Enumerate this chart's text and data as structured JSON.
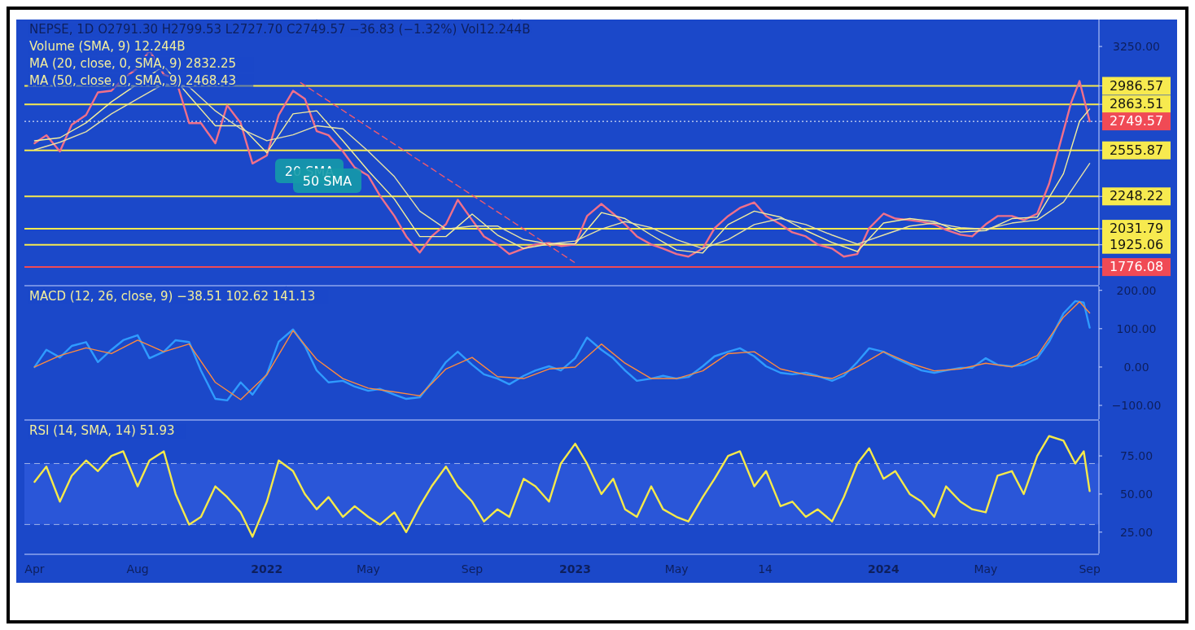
{
  "chart_data": [
    {
      "type": "line",
      "ylim": [
        1657,
        3430
      ],
      "yticks": [
        {
          "value": 3250,
          "label": "3250.00"
        },
        2986.57,
        2863.51,
        2749.57,
        2555.87,
        2248.22,
        2031.79,
        1925.06,
        1776.08
      ],
      "xlim": [
        "2021-03-20",
        "2024-09-12"
      ],
      "tick_labels": "y",
      "series": [
        {
          "color": "#f0708a",
          "x": [
            "2021-04-01",
            "2021-04-15",
            "2021-05-01",
            "2021-05-15",
            "2021-06-01",
            "2021-06-15",
            "2021-07-01",
            "2021-07-15",
            "2021-08-01",
            "2021-08-15",
            "2021-09-01",
            "2021-09-15",
            "2021-10-01",
            "2021-10-15",
            "2021-11-01",
            "2021-11-15",
            "2021-12-01",
            "2021-12-15",
            "2022-01-01",
            "2022-01-15",
            "2022-02-01",
            "2022-02-15",
            "2022-03-01",
            "2022-03-15",
            "2022-04-01",
            "2022-04-15",
            "2022-05-01",
            "2022-05-15",
            "2022-06-01",
            "2022-06-15",
            "2022-07-01",
            "2022-07-15",
            "2022-08-01",
            "2022-08-15",
            "2022-09-01",
            "2022-09-15",
            "2022-10-01",
            "2022-10-15",
            "2022-11-01",
            "2022-11-15",
            "2022-12-01",
            "2022-12-15",
            "2023-01-01",
            "2023-01-15",
            "2023-02-01",
            "2023-02-15",
            "2023-03-01",
            "2023-03-15",
            "2023-04-01",
            "2023-04-15",
            "2023-05-01",
            "2023-05-15",
            "2023-06-01",
            "2023-06-15",
            "2023-07-01",
            "2023-07-15",
            "2023-08-01",
            "2023-08-15",
            "2023-09-01",
            "2023-09-15",
            "2023-10-01",
            "2023-10-15",
            "2023-11-01",
            "2023-11-15",
            "2023-12-01",
            "2023-12-15",
            "2024-01-01",
            "2024-01-15",
            "2024-02-01",
            "2024-02-15",
            "2024-03-01",
            "2024-03-15",
            "2024-04-01",
            "2024-04-15",
            "2024-05-01",
            "2024-05-15",
            "2024-06-01",
            "2024-06-15",
            "2024-07-01",
            "2024-07-15",
            "2024-08-01",
            "2024-08-10",
            "2024-08-20",
            "2024-09-01"
          ],
          "values": [
            2603,
            2657,
            2549,
            2727,
            2792,
            2943,
            2954,
            3035,
            3105,
            3224,
            3062,
            3035,
            2738,
            2738,
            2603,
            2857,
            2738,
            2468,
            2522,
            2792,
            2954,
            2900,
            2684,
            2657,
            2549,
            2441,
            2387,
            2252,
            2117,
            1981,
            1873,
            1981,
            2062,
            2225,
            2090,
            1981,
            1927,
            1863,
            1900,
            1927,
            1938,
            1917,
            1927,
            2117,
            2198,
            2133,
            2062,
            1981,
            1927,
            1900,
            1863,
            1846,
            1900,
            2036,
            2117,
            2171,
            2208,
            2117,
            2062,
            2008,
            1981,
            1927,
            1900,
            1846,
            1863,
            2036,
            2133,
            2100,
            2090,
            2079,
            2062,
            2025,
            1992,
            1981,
            2062,
            2117,
            2117,
            2090,
            2133,
            2333,
            2684,
            2873,
            3019,
            2749.57
          ]
        },
        {
          "color": "#f3ee9c",
          "x": [
            "2021-04-01",
            "2021-05-01",
            "2021-06-01",
            "2021-07-01",
            "2021-08-01",
            "2021-09-01",
            "2021-10-01",
            "2021-11-01",
            "2021-12-01",
            "2022-01-01",
            "2022-02-01",
            "2022-03-01",
            "2022-04-01",
            "2022-05-01",
            "2022-06-01",
            "2022-07-01",
            "2022-08-01",
            "2022-09-01",
            "2022-10-01",
            "2022-11-01",
            "2022-12-01",
            "2023-01-01",
            "2023-02-01",
            "2023-03-01",
            "2023-04-01",
            "2023-05-01",
            "2023-06-01",
            "2023-07-01",
            "2023-08-01",
            "2023-09-01",
            "2023-10-01",
            "2023-11-01",
            "2023-12-01",
            "2024-01-01",
            "2024-02-01",
            "2024-03-01",
            "2024-04-01",
            "2024-05-01",
            "2024-06-01",
            "2024-07-01",
            "2024-08-01",
            "2024-08-20",
            "2024-09-01"
          ],
          "values": [
            2620,
            2640,
            2740,
            2880,
            3000,
            3120,
            2920,
            2720,
            2720,
            2540,
            2800,
            2820,
            2620,
            2420,
            2230,
            1980,
            1980,
            2130,
            1990,
            1900,
            1930,
            1930,
            2140,
            2100,
            1990,
            1890,
            1870,
            2060,
            2150,
            2110,
            2020,
            1940,
            1880,
            2070,
            2100,
            2080,
            2010,
            2020,
            2100,
            2110,
            2400,
            2750,
            2832.25
          ]
        },
        {
          "color": "#e6e2a8",
          "x": [
            "2021-04-01",
            "2021-05-01",
            "2021-06-01",
            "2021-07-01",
            "2021-08-01",
            "2021-09-01",
            "2021-10-01",
            "2021-11-01",
            "2021-12-01",
            "2022-01-01",
            "2022-02-01",
            "2022-03-01",
            "2022-04-01",
            "2022-05-01",
            "2022-06-01",
            "2022-07-01",
            "2022-08-01",
            "2022-09-01",
            "2022-10-01",
            "2022-11-01",
            "2022-12-01",
            "2023-01-01",
            "2023-02-01",
            "2023-03-01",
            "2023-04-01",
            "2023-05-01",
            "2023-06-01",
            "2023-07-01",
            "2023-08-01",
            "2023-09-01",
            "2023-10-01",
            "2023-11-01",
            "2023-12-01",
            "2024-01-01",
            "2024-02-01",
            "2024-03-01",
            "2024-04-01",
            "2024-05-01",
            "2024-06-01",
            "2024-07-01",
            "2024-08-01",
            "2024-09-01"
          ],
          "values": [
            2560,
            2610,
            2680,
            2800,
            2900,
            3000,
            2980,
            2820,
            2700,
            2620,
            2660,
            2720,
            2700,
            2550,
            2380,
            2150,
            2030,
            2050,
            2050,
            1960,
            1930,
            1950,
            2030,
            2080,
            2040,
            1960,
            1900,
            1960,
            2060,
            2100,
            2060,
            1990,
            1930,
            1990,
            2050,
            2070,
            2040,
            2030,
            2070,
            2090,
            2210,
            2468.43
          ]
        },
        {
          "color": "#f05a6e",
          "line_style": "dashed",
          "x": [
            "2022-02-10",
            "2022-12-31"
          ],
          "values": [
            3008,
            1808
          ]
        }
      ],
      "ref_lines": [
        {
          "axis": "y",
          "value": 2986.57,
          "color": "#f7ea4f"
        },
        {
          "axis": "y",
          "value": 2863.51,
          "color": "#f7ea4f"
        },
        {
          "axis": "y",
          "value": 2749.57,
          "color": "#ffffff",
          "line_style": "dotted"
        },
        {
          "axis": "y",
          "value": 2555.87,
          "color": "#f7ea4f"
        },
        {
          "axis": "y",
          "value": 2248.22,
          "color": "#f7ea4f"
        },
        {
          "axis": "y",
          "value": 2031.79,
          "color": "#f7ea4f"
        },
        {
          "axis": "y",
          "value": 1925.06,
          "color": "#f7ea4f"
        },
        {
          "axis": "y",
          "value": 1776.08,
          "color": "#f04a55"
        }
      ],
      "annotations": [
        "NEPSE, 1D O2791.30 H2799.53 L2727.70 C2749.57 −36.83 (−1.32%) Vol12.244B",
        "Volume (SMA, 9) 12.244B",
        "MA (20, close, 0, SMA, 9) 2832.25",
        "MA (50, close, 0, SMA, 9) 2468.43",
        "20 SMA",
        "50 SMA"
      ]
    },
    {
      "type": "line",
      "ylim": [
        -136,
        210
      ],
      "yticks": [
        {
          "value": 200,
          "label": "200.00"
        },
        {
          "value": 100,
          "label": "100.00"
        },
        {
          "value": 0,
          "label": "0.00"
        },
        {
          "value": -100,
          "label": "−100.00"
        }
      ],
      "xlim": [
        "2021-03-20",
        "2024-09-12"
      ],
      "tick_labels": "y",
      "series": [
        {
          "color": "#2f9bff",
          "x": [
            "2021-04-01",
            "2021-04-15",
            "2021-05-01",
            "2021-05-15",
            "2021-06-01",
            "2021-06-15",
            "2021-07-01",
            "2021-07-15",
            "2021-08-01",
            "2021-08-15",
            "2021-09-01",
            "2021-09-15",
            "2021-10-01",
            "2021-10-15",
            "2021-11-01",
            "2021-11-15",
            "2021-12-01",
            "2021-12-15",
            "2022-01-01",
            "2022-01-15",
            "2022-02-01",
            "2022-02-15",
            "2022-03-01",
            "2022-03-15",
            "2022-04-01",
            "2022-04-15",
            "2022-05-01",
            "2022-05-15",
            "2022-06-01",
            "2022-06-15",
            "2022-07-01",
            "2022-07-15",
            "2022-08-01",
            "2022-08-15",
            "2022-09-01",
            "2022-09-15",
            "2022-10-01",
            "2022-10-15",
            "2022-11-01",
            "2022-11-15",
            "2022-12-01",
            "2022-12-15",
            "2023-01-01",
            "2023-01-15",
            "2023-02-01",
            "2023-02-15",
            "2023-03-01",
            "2023-03-15",
            "2023-04-01",
            "2023-04-15",
            "2023-05-01",
            "2023-05-15",
            "2023-06-01",
            "2023-06-15",
            "2023-07-01",
            "2023-07-15",
            "2023-08-01",
            "2023-08-15",
            "2023-09-01",
            "2023-09-15",
            "2023-10-01",
            "2023-10-15",
            "2023-11-01",
            "2023-11-15",
            "2023-12-01",
            "2023-12-15",
            "2024-01-01",
            "2024-01-15",
            "2024-02-01",
            "2024-02-15",
            "2024-03-01",
            "2024-03-15",
            "2024-04-01",
            "2024-04-15",
            "2024-05-01",
            "2024-05-15",
            "2024-06-01",
            "2024-06-15",
            "2024-07-01",
            "2024-07-15",
            "2024-08-01",
            "2024-08-15",
            "2024-08-25",
            "2024-09-01"
          ],
          "values": [
            0,
            45,
            25,
            55,
            65,
            13,
            45,
            70,
            83,
            23,
            40,
            70,
            65,
            -9,
            -83,
            -87,
            -40,
            -72,
            -19,
            66,
            98,
            55,
            -9,
            -40,
            -36,
            -51,
            -62,
            -57,
            -72,
            -83,
            -79,
            -40,
            13,
            40,
            6,
            -19,
            -30,
            -45,
            -23,
            -9,
            2,
            -9,
            23,
            77,
            45,
            23,
            -9,
            -36,
            -30,
            -23,
            -30,
            -26,
            2,
            28,
            40,
            49,
            28,
            2,
            -15,
            -19,
            -15,
            -23,
            -36,
            -23,
            13,
            49,
            40,
            23,
            6,
            -9,
            -15,
            -9,
            -2,
            -2,
            23,
            6,
            2,
            6,
            23,
            66,
            140,
            172,
            168,
            102.62
          ]
        },
        {
          "color": "#ff8a3d",
          "x": [
            "2021-04-01",
            "2021-05-01",
            "2021-06-01",
            "2021-07-01",
            "2021-08-01",
            "2021-09-01",
            "2021-10-01",
            "2021-11-01",
            "2021-12-01",
            "2022-01-01",
            "2022-02-01",
            "2022-03-01",
            "2022-04-01",
            "2022-05-01",
            "2022-06-01",
            "2022-07-01",
            "2022-08-01",
            "2022-09-01",
            "2022-10-01",
            "2022-11-01",
            "2022-12-01",
            "2023-01-01",
            "2023-02-01",
            "2023-03-01",
            "2023-04-01",
            "2023-05-01",
            "2023-06-01",
            "2023-07-01",
            "2023-08-01",
            "2023-09-01",
            "2023-10-01",
            "2023-11-01",
            "2023-12-01",
            "2024-01-01",
            "2024-02-01",
            "2024-03-01",
            "2024-04-01",
            "2024-05-01",
            "2024-06-01",
            "2024-07-01",
            "2024-08-01",
            "2024-08-20",
            "2024-09-01"
          ],
          "values": [
            0,
            30,
            50,
            35,
            70,
            40,
            60,
            -40,
            -85,
            -20,
            95,
            20,
            -30,
            -55,
            -65,
            -75,
            -5,
            25,
            -25,
            -30,
            -5,
            0,
            60,
            10,
            -30,
            -30,
            -10,
            35,
            40,
            -5,
            -20,
            -30,
            0,
            40,
            10,
            -10,
            -5,
            10,
            0,
            30,
            130,
            170,
            141.13
          ]
        }
      ],
      "annotations": [
        "MACD (12, 26, close, 9) −38.51 102.62 141.13"
      ]
    },
    {
      "type": "line",
      "ylim": [
        11,
        98
      ],
      "yticks": [
        {
          "value": 25,
          "label": "25.00"
        },
        {
          "value": 50,
          "label": "50.00"
        },
        {
          "value": 75,
          "label": "75.00"
        }
      ],
      "xlim": [
        "2021-03-20",
        "2024-09-12"
      ],
      "xticks": [
        {
          "value": "2021-04-01",
          "label": "Apr"
        },
        {
          "value": "2021-08-01",
          "label": "Aug"
        },
        {
          "value": "2022-01-01",
          "label": "2022"
        },
        {
          "value": "2022-05-01",
          "label": "May"
        },
        {
          "value": "2022-09-01",
          "label": "Sep"
        },
        {
          "value": "2023-01-01",
          "label": "2023"
        },
        {
          "value": "2023-05-01",
          "label": "May"
        },
        {
          "value": "2023-08-14",
          "label": "14"
        },
        {
          "value": "2024-01-01",
          "label": "2024"
        },
        {
          "value": "2024-05-01",
          "label": "May"
        },
        {
          "value": "2024-09-01",
          "label": "Sep"
        }
      ],
      "series": [
        {
          "color": "#f5e94a",
          "x": [
            "2021-04-01",
            "2021-04-15",
            "2021-05-01",
            "2021-05-15",
            "2021-06-01",
            "2021-06-15",
            "2021-07-01",
            "2021-07-15",
            "2021-08-01",
            "2021-08-15",
            "2021-09-01",
            "2021-09-15",
            "2021-10-01",
            "2021-10-15",
            "2021-11-01",
            "2021-11-15",
            "2021-12-01",
            "2021-12-15",
            "2022-01-01",
            "2022-01-15",
            "2022-02-01",
            "2022-02-15",
            "2022-03-01",
            "2022-03-15",
            "2022-04-01",
            "2022-04-15",
            "2022-05-01",
            "2022-05-15",
            "2022-06-01",
            "2022-06-15",
            "2022-07-01",
            "2022-07-15",
            "2022-08-01",
            "2022-08-15",
            "2022-09-01",
            "2022-09-15",
            "2022-10-01",
            "2022-10-15",
            "2022-11-01",
            "2022-11-15",
            "2022-12-01",
            "2022-12-15",
            "2023-01-01",
            "2023-01-15",
            "2023-02-01",
            "2023-02-15",
            "2023-03-01",
            "2023-03-15",
            "2023-04-01",
            "2023-04-15",
            "2023-05-01",
            "2023-05-15",
            "2023-06-01",
            "2023-06-15",
            "2023-07-01",
            "2023-07-15",
            "2023-08-01",
            "2023-08-15",
            "2023-09-01",
            "2023-09-15",
            "2023-10-01",
            "2023-10-15",
            "2023-11-01",
            "2023-11-15",
            "2023-12-01",
            "2023-12-15",
            "2024-01-01",
            "2024-01-15",
            "2024-02-01",
            "2024-02-15",
            "2024-03-01",
            "2024-03-15",
            "2024-04-01",
            "2024-04-15",
            "2024-05-01",
            "2024-05-15",
            "2024-06-01",
            "2024-06-15",
            "2024-07-01",
            "2024-07-15",
            "2024-08-01",
            "2024-08-15",
            "2024-08-25",
            "2024-09-01"
          ],
          "values": [
            58,
            68,
            45,
            62,
            72,
            65,
            75,
            78,
            55,
            72,
            78,
            50,
            30,
            35,
            55,
            48,
            38,
            22,
            45,
            72,
            65,
            50,
            40,
            48,
            35,
            42,
            35,
            30,
            38,
            25,
            42,
            55,
            68,
            55,
            45,
            32,
            40,
            35,
            60,
            55,
            45,
            70,
            83,
            70,
            50,
            60,
            40,
            35,
            55,
            40,
            35,
            32,
            48,
            60,
            75,
            78,
            55,
            65,
            42,
            45,
            35,
            40,
            32,
            48,
            70,
            80,
            60,
            65,
            50,
            45,
            35,
            55,
            45,
            40,
            38,
            62,
            65,
            50,
            75,
            88,
            85,
            70,
            78,
            51.93
          ]
        }
      ],
      "bands": [
        {
          "axis": "y",
          "from": 30,
          "to": 70,
          "color": "#2a56d8"
        }
      ],
      "ref_lines": [
        {
          "axis": "y",
          "value": 70,
          "color": "#9fb3e8",
          "line_style": "dashed"
        },
        {
          "axis": "y",
          "value": 30,
          "color": "#9fb3e8",
          "line_style": "dashed"
        }
      ],
      "annotations": [
        "RSI (14, SMA, 14) 51.93"
      ]
    }
  ]
}
